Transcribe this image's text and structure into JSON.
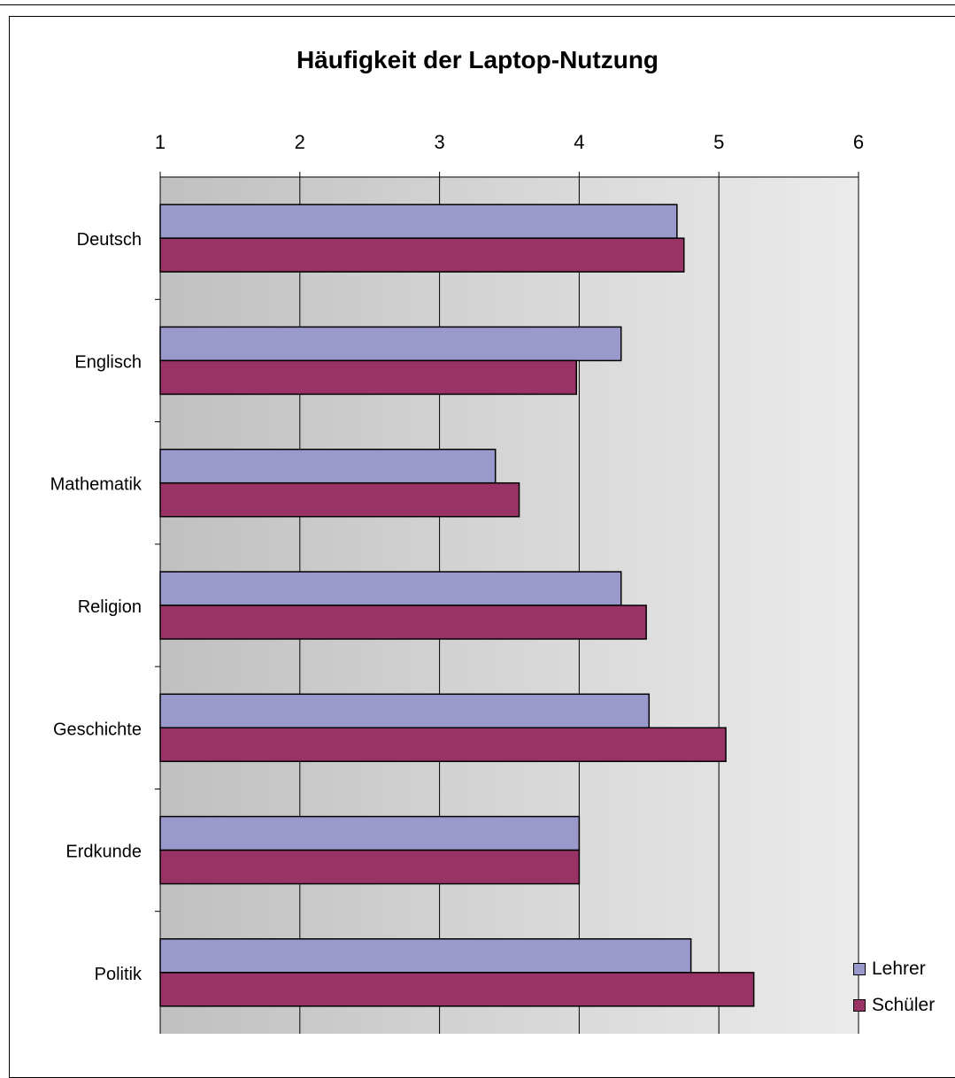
{
  "chart_data": {
    "type": "bar",
    "orientation": "horizontal",
    "title": "Häufigkeit der Laptop-Nutzung",
    "xlabel": "",
    "ylabel": "",
    "xlim": [
      1,
      6
    ],
    "x_ticks": [
      1,
      2,
      3,
      4,
      5,
      6
    ],
    "x_axis_position": "top",
    "grid": true,
    "legend_position": "bottom-right",
    "categories": [
      "Deutsch",
      "Englisch",
      "Mathematik",
      "Religion",
      "Geschichte",
      "Erdkunde",
      "Politik"
    ],
    "series": [
      {
        "name": "Lehrer",
        "color": "#9999cc",
        "values": [
          4.7,
          4.3,
          3.4,
          4.3,
          4.5,
          4.0,
          4.8
        ]
      },
      {
        "name": "Schüler",
        "color": "#993366",
        "values": [
          4.75,
          3.98,
          3.57,
          4.48,
          5.05,
          4.0,
          5.25
        ]
      }
    ]
  }
}
